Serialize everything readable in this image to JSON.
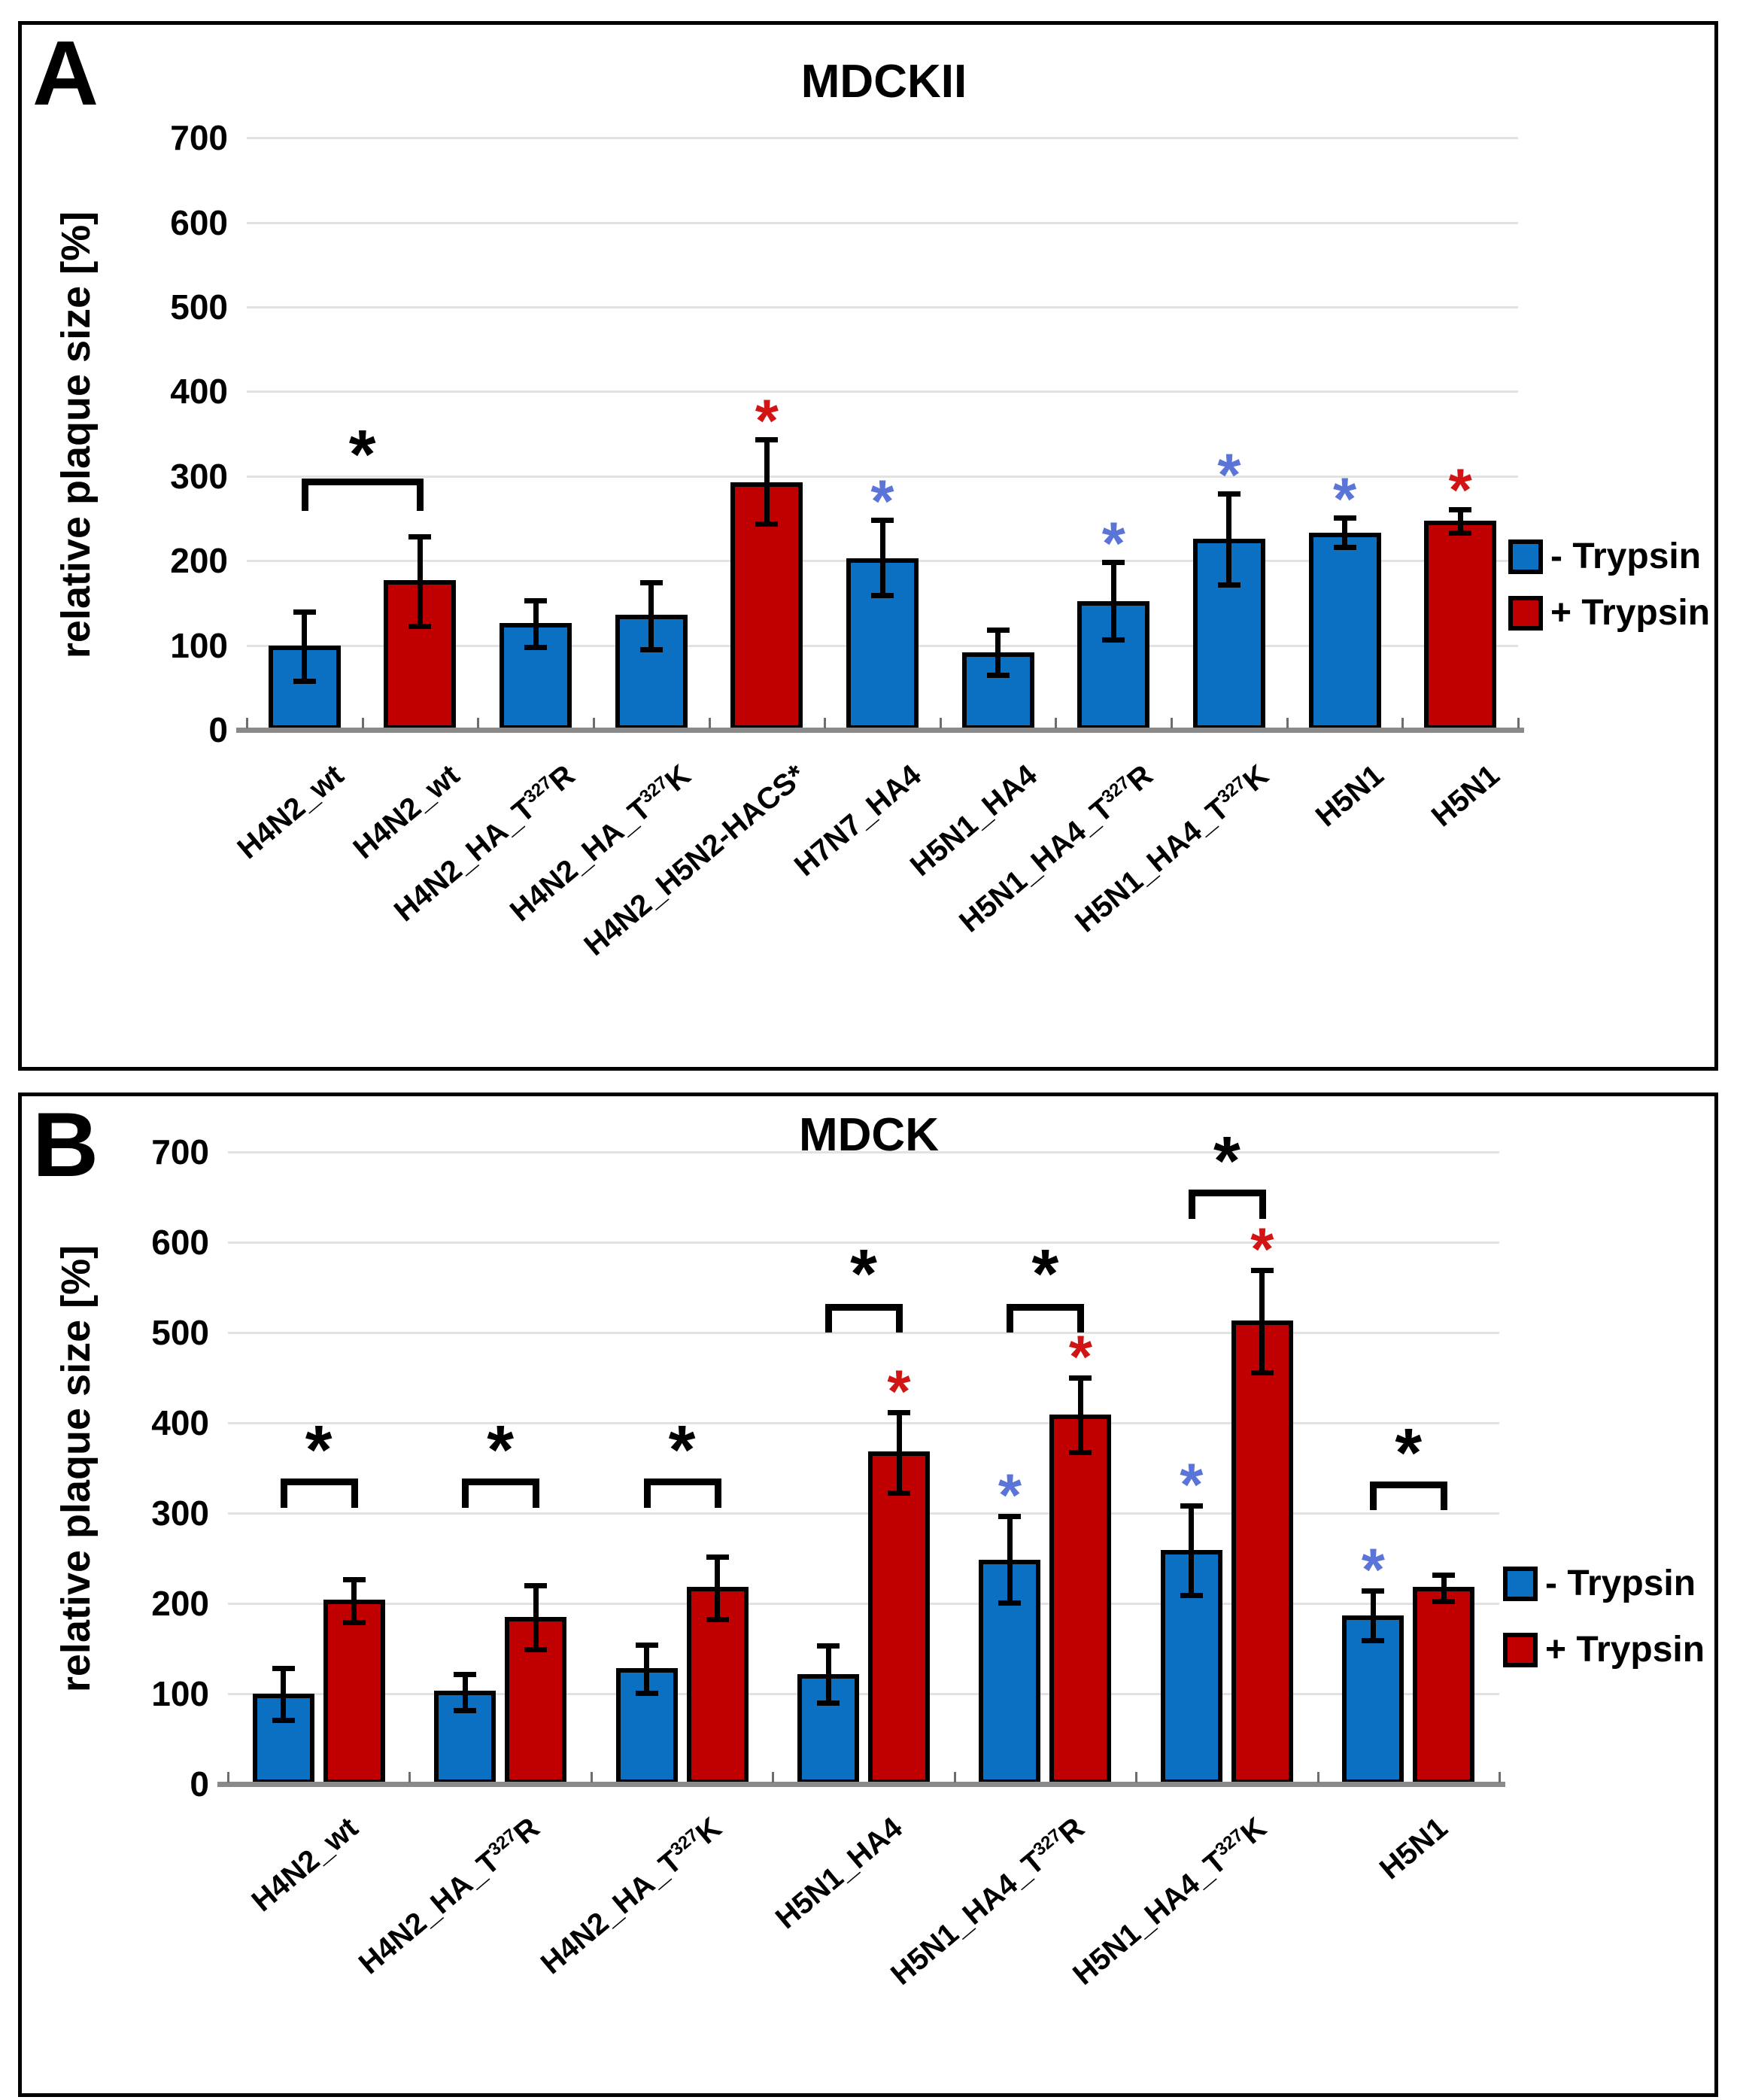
{
  "colors": {
    "series": {
      "minus": "#0c70c2",
      "plus": "#c00000"
    },
    "star": {
      "blue": "#5b74d8",
      "red": "#d11414",
      "black": "#000000"
    },
    "gridline": "#e2e2e2",
    "baseline": "#8a8a8a"
  },
  "chart_data": [
    {
      "type": "bar",
      "panel": "A",
      "title": "MDCKII",
      "xlabel": "",
      "ylabel": "relative plaque size [%]",
      "ylim": [
        0,
        700
      ],
      "yticks": [
        0,
        100,
        200,
        300,
        400,
        500,
        600,
        700
      ],
      "grid": true,
      "legend_position": "right",
      "legend": [
        {
          "label": "- Trypsin",
          "series": "minus"
        },
        {
          "label": "+ Trypsin",
          "series": "plus"
        }
      ],
      "categories": [
        "H4N2_wt",
        "H4N2_wt",
        "H4N2_HA_T^327^R",
        "H4N2_HA_T^327^K",
        "H4N2_H5N2-HACS*",
        "H7N7_HA4",
        "H5N1_HA4",
        "H5N1_HA4_T^327^R",
        "H5N1_HA4_T^327^K",
        "H5N1",
        "H5N1"
      ],
      "bars": [
        {
          "slot": 0,
          "series": "minus",
          "value": 100,
          "err_up": 40,
          "err_down": 43,
          "star": null
        },
        {
          "slot": 1,
          "series": "plus",
          "value": 177,
          "err_up": 52,
          "err_down": 55,
          "star": null
        },
        {
          "slot": 2,
          "series": "minus",
          "value": 126,
          "err_up": 27,
          "err_down": 29,
          "star": null
        },
        {
          "slot": 3,
          "series": "minus",
          "value": 136,
          "err_up": 38,
          "err_down": 42,
          "star": null
        },
        {
          "slot": 4,
          "series": "plus",
          "value": 293,
          "err_up": 50,
          "err_down": 50,
          "star": "red"
        },
        {
          "slot": 5,
          "series": "minus",
          "value": 203,
          "err_up": 45,
          "err_down": 45,
          "star": "blue"
        },
        {
          "slot": 6,
          "series": "minus",
          "value": 92,
          "err_up": 26,
          "err_down": 28,
          "star": null
        },
        {
          "slot": 7,
          "series": "minus",
          "value": 152,
          "err_up": 46,
          "err_down": 46,
          "star": "blue"
        },
        {
          "slot": 8,
          "series": "minus",
          "value": 226,
          "err_up": 53,
          "err_down": 55,
          "star": "blue"
        },
        {
          "slot": 9,
          "series": "minus",
          "value": 233,
          "err_up": 18,
          "err_down": 18,
          "star": "blue"
        },
        {
          "slot": 10,
          "series": "plus",
          "value": 247,
          "err_up": 14,
          "err_down": 15,
          "star": "red"
        }
      ],
      "brackets": [
        {
          "a": [
            0,
            "minus"
          ],
          "b": [
            1,
            "plus"
          ],
          "y": 297,
          "leg": 38,
          "star_y": 340
        }
      ]
    },
    {
      "type": "bar",
      "panel": "B",
      "title": "MDCK",
      "xlabel": "",
      "ylabel": "relative plaque size [%]",
      "ylim": [
        0,
        700
      ],
      "yticks": [
        0,
        100,
        200,
        300,
        400,
        500,
        600,
        700
      ],
      "grid": true,
      "legend_position": "right",
      "legend": [
        {
          "label": "- Trypsin",
          "series": "minus"
        },
        {
          "label": "+ Trypsin",
          "series": "plus"
        }
      ],
      "categories": [
        "H4N2_wt",
        "H4N2_HA_T^327^R",
        "H4N2_HA_T^327^K",
        "H5N1_HA4",
        "H5N1_HA4_T^327^R",
        "H5N1_HA4_T^327^K",
        "H5N1"
      ],
      "bars": [
        {
          "slot": 0,
          "series": "minus",
          "value": 100,
          "err_up": 28,
          "err_down": 30,
          "star": null
        },
        {
          "slot": 0,
          "series": "plus",
          "value": 204,
          "err_up": 23,
          "err_down": 26,
          "star": null
        },
        {
          "slot": 1,
          "series": "minus",
          "value": 103,
          "err_up": 19,
          "err_down": 22,
          "star": null
        },
        {
          "slot": 1,
          "series": "plus",
          "value": 185,
          "err_up": 35,
          "err_down": 37,
          "star": null
        },
        {
          "slot": 2,
          "series": "minus",
          "value": 128,
          "err_up": 26,
          "err_down": 28,
          "star": null
        },
        {
          "slot": 2,
          "series": "plus",
          "value": 218,
          "err_up": 34,
          "err_down": 36,
          "star": null
        },
        {
          "slot": 3,
          "series": "minus",
          "value": 122,
          "err_up": 31,
          "err_down": 33,
          "star": null
        },
        {
          "slot": 3,
          "series": "plus",
          "value": 368,
          "err_up": 44,
          "err_down": 46,
          "star": "red"
        },
        {
          "slot": 4,
          "series": "minus",
          "value": 248,
          "err_up": 49,
          "err_down": 48,
          "star": "blue"
        },
        {
          "slot": 4,
          "series": "plus",
          "value": 409,
          "err_up": 41,
          "err_down": 42,
          "star": "red"
        },
        {
          "slot": 5,
          "series": "minus",
          "value": 259,
          "err_up": 49,
          "err_down": 51,
          "star": "blue"
        },
        {
          "slot": 5,
          "series": "plus",
          "value": 513,
          "err_up": 56,
          "err_down": 58,
          "star": "red"
        },
        {
          "slot": 6,
          "series": "minus",
          "value": 187,
          "err_up": 27,
          "err_down": 29,
          "star": "blue"
        },
        {
          "slot": 6,
          "series": "plus",
          "value": 218,
          "err_up": 14,
          "err_down": 16,
          "star": null
        }
      ],
      "brackets": [
        {
          "a": [
            0,
            "minus"
          ],
          "b": [
            0,
            "plus"
          ],
          "y": 338,
          "leg": 32,
          "star_y": 383
        },
        {
          "a": [
            1,
            "minus"
          ],
          "b": [
            1,
            "plus"
          ],
          "y": 338,
          "leg": 32,
          "star_y": 383
        },
        {
          "a": [
            2,
            "minus"
          ],
          "b": [
            2,
            "plus"
          ],
          "y": 338,
          "leg": 32,
          "star_y": 383
        },
        {
          "a": [
            3,
            "minus"
          ],
          "b": [
            3,
            "plus"
          ],
          "y": 532,
          "leg": 32,
          "star_y": 578
        },
        {
          "a": [
            4,
            "minus"
          ],
          "b": [
            4,
            "plus"
          ],
          "y": 532,
          "leg": 32,
          "star_y": 578
        },
        {
          "a": [
            5,
            "minus"
          ],
          "b": [
            5,
            "plus"
          ],
          "y": 658,
          "leg": 32,
          "star_y": 703
        },
        {
          "a": [
            6,
            "minus"
          ],
          "b": [
            6,
            "plus"
          ],
          "y": 335,
          "leg": 32,
          "star_y": 380
        }
      ]
    }
  ]
}
